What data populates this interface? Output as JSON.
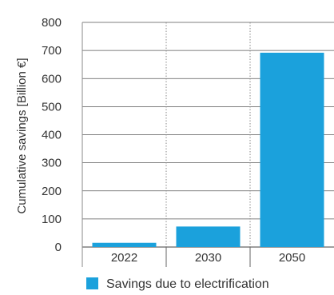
{
  "chart_data": {
    "type": "bar",
    "categories": [
      "2022",
      "2030",
      "2050"
    ],
    "series": [
      {
        "name": "Savings due to electrification",
        "values": [
          15,
          73,
          692
        ],
        "color": "#1ba1dc"
      }
    ],
    "ylabel": "Cumulative savings [Billion €]",
    "xlabel": "",
    "ylim": [
      0,
      800
    ],
    "yticks": [
      0,
      100,
      200,
      300,
      400,
      500,
      600,
      700,
      800
    ],
    "grid": {
      "horizontal": true,
      "vertical": "dotted between categories"
    },
    "legend_position": "bottom"
  }
}
